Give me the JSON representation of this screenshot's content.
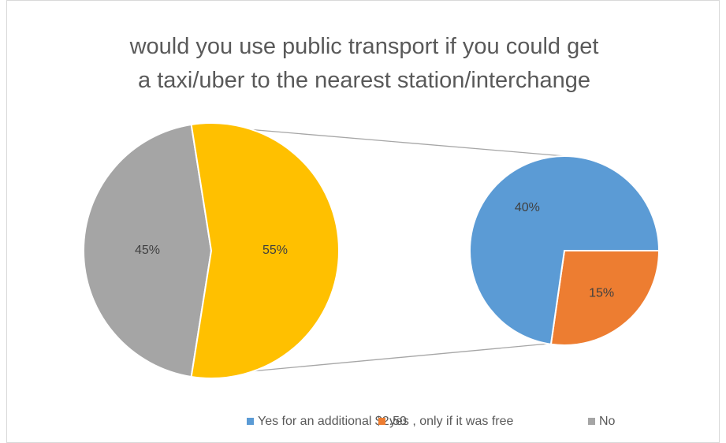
{
  "chart_data": {
    "type": "pie-of-pie",
    "title": "would you use public transport if you could get a taxi/uber to the nearest station/interchange",
    "categories": [
      "Yes for an additional $2.50",
      "yes , only if it was free",
      "No"
    ],
    "values": [
      40,
      15,
      45
    ],
    "value_labels": [
      "40%",
      "15%",
      "45%"
    ],
    "colors": [
      "#5b9bd5",
      "#ed7d31",
      "#a5a5a5"
    ],
    "combined_value": 55,
    "combined_label": "55%",
    "combined_color": "#ffc000",
    "legend": "bottom"
  }
}
